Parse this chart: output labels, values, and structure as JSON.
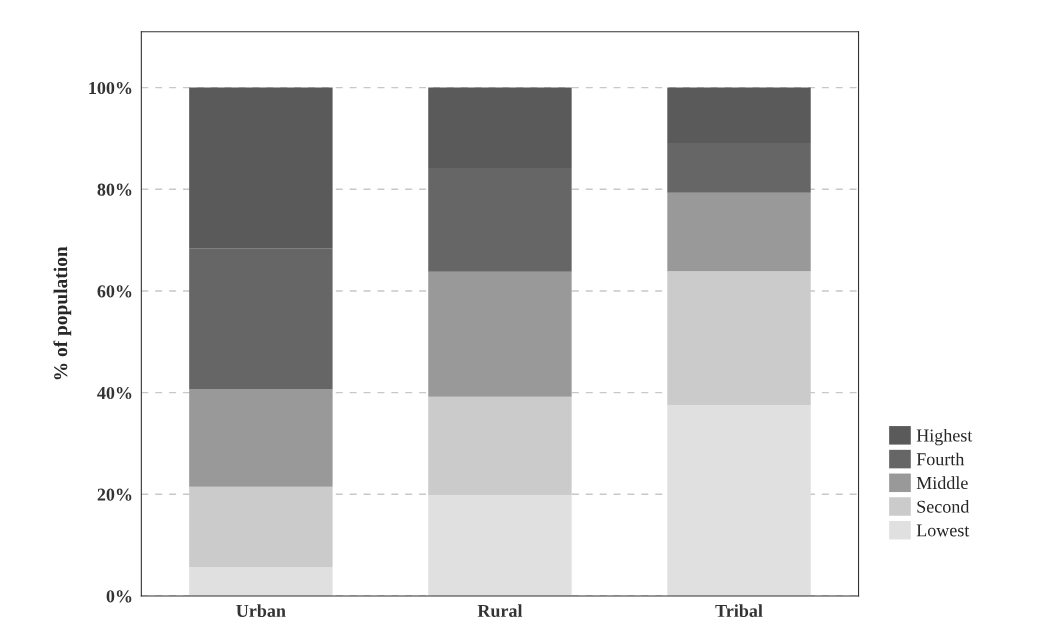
{
  "chart_data": {
    "type": "bar",
    "stacked": true,
    "ylabel": "% of population",
    "categories": [
      "Urban",
      "Rural",
      "Tribal"
    ],
    "series": [
      {
        "name": "Lowest",
        "color": "#e0e0e0",
        "values": [
          5.7,
          19.8,
          37.5
        ]
      },
      {
        "name": "Second",
        "color": "#cbcbcb",
        "values": [
          15.8,
          19.4,
          26.4
        ]
      },
      {
        "name": "Middle",
        "color": "#999999",
        "values": [
          19.1,
          24.6,
          15.4
        ]
      },
      {
        "name": "Fourth",
        "color": "#666666",
        "values": [
          27.8,
          20.4,
          9.8
        ]
      },
      {
        "name": "Highest",
        "color": "#5a5a5a",
        "values": [
          31.6,
          15.8,
          10.9
        ]
      }
    ],
    "ylim": [
      0,
      111
    ],
    "yticks": [
      {
        "value": 0,
        "label": "0%"
      },
      {
        "value": 20,
        "label": "20%"
      },
      {
        "value": 40,
        "label": "40%"
      },
      {
        "value": 60,
        "label": "60%"
      },
      {
        "value": 80,
        "label": "80%"
      },
      {
        "value": 100,
        "label": "100%"
      }
    ],
    "grid": "y",
    "legend": "right"
  }
}
